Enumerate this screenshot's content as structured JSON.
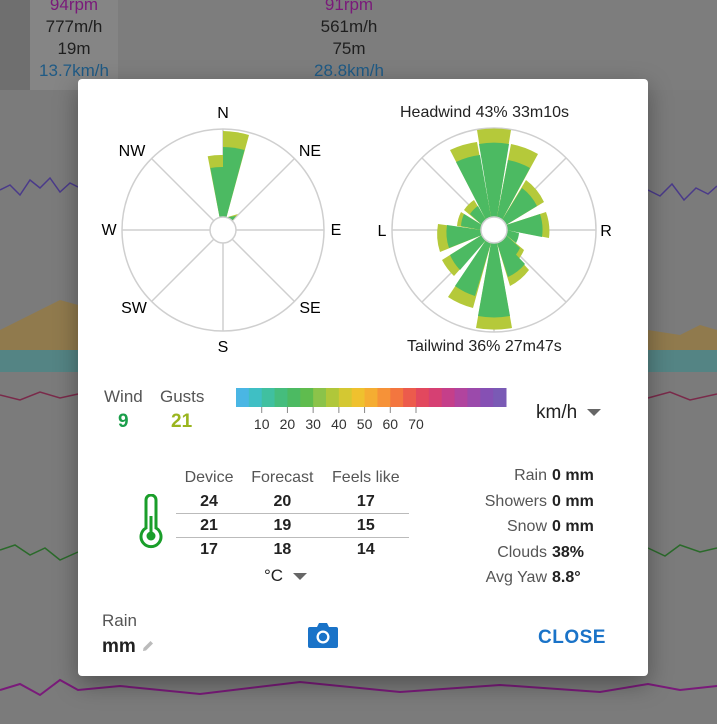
{
  "background": {
    "col1": {
      "rpm": "94rpm",
      "speed": "777m/h",
      "distance": "19m",
      "wind": "13.7km/h"
    },
    "col2": {
      "rpm": "91rpm",
      "speed": "561m/h",
      "distance": "75m",
      "wind": "28.8km/h"
    }
  },
  "rose1": {
    "labels": {
      "n": "N",
      "ne": "NE",
      "e": "E",
      "se": "SE",
      "s": "S",
      "sw": "SW",
      "w": "W",
      "nw": "NW"
    }
  },
  "rose2": {
    "headwind": "Headwind 43% 33m10s",
    "tailwind": "Tailwind 36% 27m47s",
    "left": "L",
    "right": "R"
  },
  "wind": {
    "label": "Wind",
    "value": "9",
    "color": "#1a9e4a"
  },
  "gusts": {
    "label": "Gusts",
    "value": "21",
    "color": "#9ab51e"
  },
  "scale": {
    "ticks": [
      "10",
      "20",
      "30",
      "40",
      "50",
      "60",
      "70"
    ],
    "colors": [
      "#4ab6e4",
      "#3fbfc4",
      "#40c0a0",
      "#45bd7d",
      "#4cba62",
      "#5fbc4e",
      "#8bc34a",
      "#b0c73a",
      "#d4c832",
      "#efc12e",
      "#f5ad32",
      "#f69238",
      "#f3763f",
      "#ec5b4c",
      "#e2485e",
      "#d64073",
      "#c53f8a",
      "#b1449e",
      "#9b4aab",
      "#8650b4",
      "#7a5ab5"
    ]
  },
  "unit": {
    "value": "km/h"
  },
  "temperature": {
    "headers": [
      "Device",
      "Forecast",
      "Feels like"
    ],
    "rows": [
      [
        "24",
        "20",
        "17"
      ],
      [
        "21",
        "19",
        "15"
      ],
      [
        "17",
        "18",
        "14"
      ]
    ],
    "unit": "°C"
  },
  "weather": [
    {
      "label": "Rain",
      "value": "0 mm"
    },
    {
      "label": "Showers",
      "value": "0 mm"
    },
    {
      "label": "Snow",
      "value": "0 mm"
    },
    {
      "label": "Clouds",
      "value": "38%"
    },
    {
      "label": "Avg Yaw",
      "value": "8.8°"
    }
  ],
  "footer": {
    "rain_label": "Rain",
    "rain_unit": "mm",
    "close": "CLOSE"
  },
  "colors": {
    "accent": "#1a73c8",
    "inner_wedge": "#4cba62",
    "outer_wedge": "#b5c93a",
    "thermometer": "#1a9e2a"
  },
  "icons": [
    "thermometer-icon",
    "edit-pencil-icon",
    "camera-icon",
    "chevron-down-icon"
  ]
}
